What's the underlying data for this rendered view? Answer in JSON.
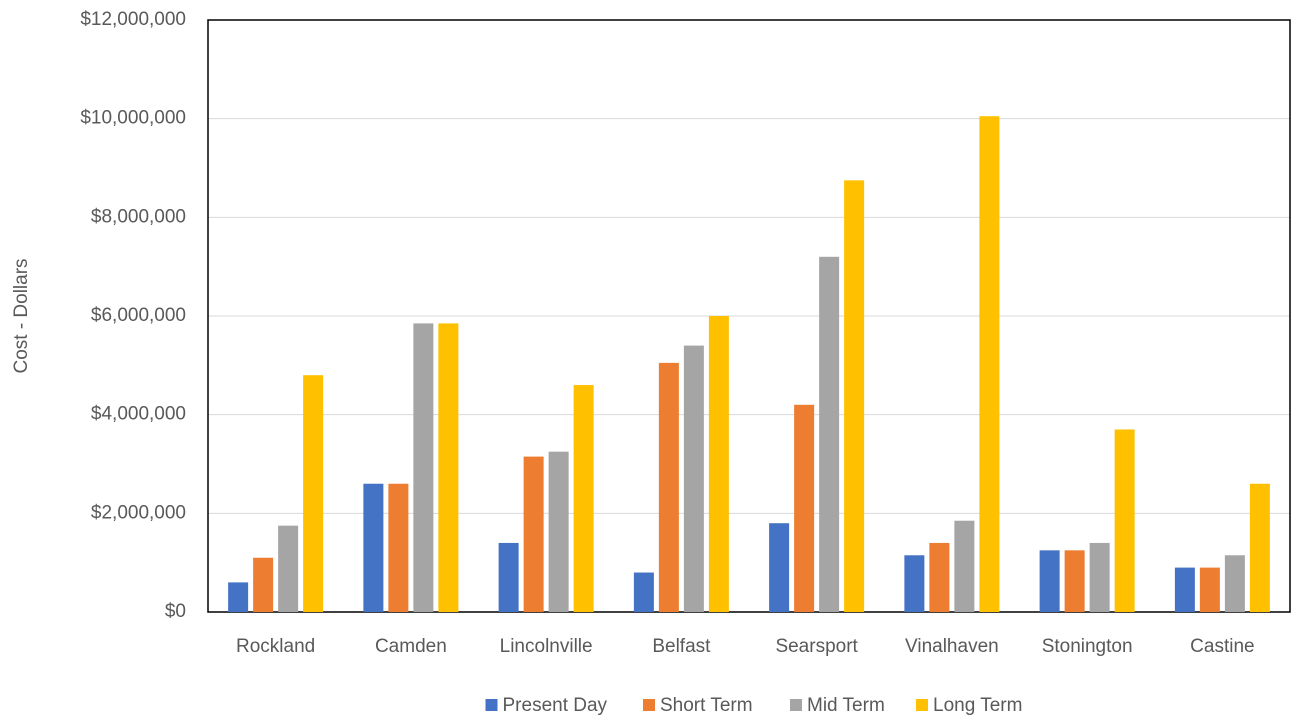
{
  "chart_data": {
    "type": "bar",
    "y_label": "Cost - Dollars",
    "categories": [
      "Rockland",
      "Camden",
      "Lincolnville",
      "Belfast",
      "Searsport",
      "Vinalhaven",
      "Stonington",
      "Castine"
    ],
    "series": [
      {
        "name": "Present Day",
        "color": "#4472c4",
        "values": [
          600000,
          2600000,
          1400000,
          800000,
          1800000,
          1150000,
          1250000,
          900000
        ]
      },
      {
        "name": "Short Term",
        "color": "#ed7d31",
        "values": [
          1100000,
          2600000,
          3150000,
          5050000,
          4200000,
          1400000,
          1250000,
          900000
        ]
      },
      {
        "name": "Mid Term",
        "color": "#a5a5a5",
        "values": [
          1750000,
          5850000,
          3250000,
          5400000,
          7200000,
          1850000,
          1400000,
          1150000
        ]
      },
      {
        "name": "Long Term",
        "color": "#ffc000",
        "values": [
          4800000,
          5850000,
          4600000,
          6000000,
          8750000,
          10050000,
          3700000,
          2600000
        ]
      }
    ],
    "ylim": [
      0,
      12000000
    ],
    "yticks": [
      {
        "value": 0,
        "label": "$0"
      },
      {
        "value": 2000000,
        "label": "$2,000,000"
      },
      {
        "value": 4000000,
        "label": "$4,000,000"
      },
      {
        "value": 6000000,
        "label": "$6,000,000"
      },
      {
        "value": 8000000,
        "label": "$8,000,000"
      },
      {
        "value": 10000000,
        "label": "$10,000,000"
      },
      {
        "value": 12000000,
        "label": "$12,000,000"
      }
    ],
    "grid": true,
    "legend": "bottom"
  }
}
